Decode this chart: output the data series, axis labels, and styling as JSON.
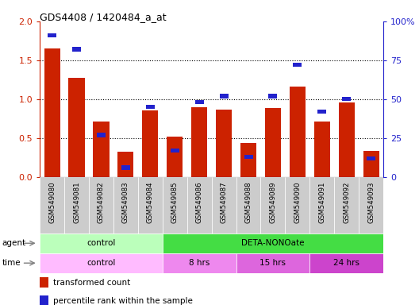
{
  "title": "GDS4408 / 1420484_a_at",
  "samples": [
    "GSM549080",
    "GSM549081",
    "GSM549082",
    "GSM549083",
    "GSM549084",
    "GSM549085",
    "GSM549086",
    "GSM549087",
    "GSM549088",
    "GSM549089",
    "GSM549090",
    "GSM549091",
    "GSM549092",
    "GSM549093"
  ],
  "transformed_count": [
    1.65,
    1.27,
    0.71,
    0.32,
    0.85,
    0.52,
    0.9,
    0.87,
    0.44,
    0.89,
    1.16,
    0.71,
    0.96,
    0.33
  ],
  "percentile_rank": [
    91,
    82,
    27,
    6,
    45,
    17,
    48,
    52,
    13,
    52,
    72,
    42,
    50,
    12
  ],
  "red_color": "#cc2200",
  "blue_color": "#2222cc",
  "bar_width": 0.65,
  "ylim_left": [
    0,
    2
  ],
  "ylim_right": [
    0,
    100
  ],
  "yticks_left": [
    0,
    0.5,
    1.0,
    1.5,
    2.0
  ],
  "yticks_right": [
    0,
    25,
    50,
    75,
    100
  ],
  "ytick_labels_right": [
    "0",
    "25",
    "50",
    "75",
    "100%"
  ],
  "agent_groups": [
    {
      "label": "control",
      "start": 0,
      "end": 5,
      "color": "#bbffbb"
    },
    {
      "label": "DETA-NONOate",
      "start": 5,
      "end": 14,
      "color": "#44dd44"
    }
  ],
  "time_groups": [
    {
      "label": "control",
      "start": 0,
      "end": 5,
      "color": "#ffbbff"
    },
    {
      "label": "8 hrs",
      "start": 5,
      "end": 8,
      "color": "#ee88ee"
    },
    {
      "label": "15 hrs",
      "start": 8,
      "end": 11,
      "color": "#dd66dd"
    },
    {
      "label": "24 hrs",
      "start": 11,
      "end": 14,
      "color": "#cc44cc"
    }
  ],
  "legend_items": [
    {
      "label": "transformed count",
      "color": "#cc2200"
    },
    {
      "label": "percentile rank within the sample",
      "color": "#2222cc"
    }
  ],
  "tick_bg_color": "#cccccc",
  "spine_color": "#000000"
}
